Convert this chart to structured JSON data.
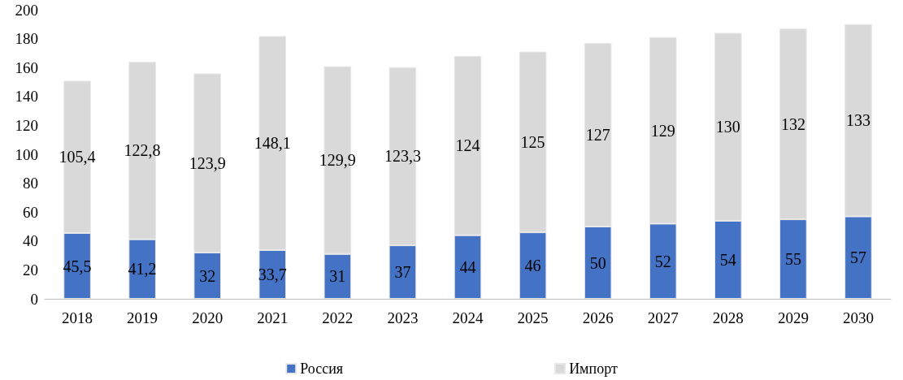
{
  "chart_data": {
    "type": "bar",
    "stacked": true,
    "categories": [
      "2018",
      "2019",
      "2020",
      "2021",
      "2022",
      "2023",
      "2024",
      "2025",
      "2026",
      "2027",
      "2028",
      "2029",
      "2030"
    ],
    "series": [
      {
        "name": "Россия",
        "color": "#4472c4",
        "values": [
          45.5,
          41.2,
          32,
          33.7,
          31,
          37,
          44,
          46,
          50,
          52,
          54,
          55,
          57
        ],
        "value_labels": [
          "45,5",
          "41,2",
          "32",
          "33,7",
          "31",
          "37",
          "44",
          "46",
          "50",
          "52",
          "54",
          "55",
          "57"
        ]
      },
      {
        "name": "Импорт",
        "color": "#d9d9d9",
        "values": [
          105.4,
          122.8,
          123.9,
          148.1,
          129.9,
          123.3,
          124,
          125,
          127,
          129,
          130,
          132,
          133
        ],
        "value_labels": [
          "105,4",
          "122,8",
          "123,9",
          "148,1",
          "129,9",
          "123,3",
          "124",
          "125",
          "127",
          "129",
          "130",
          "132",
          "133"
        ]
      }
    ],
    "ylim": [
      0,
      200
    ],
    "yticks": [
      0,
      20,
      40,
      60,
      80,
      100,
      120,
      140,
      160,
      180,
      200
    ],
    "grid": false,
    "legend": "bottom"
  }
}
